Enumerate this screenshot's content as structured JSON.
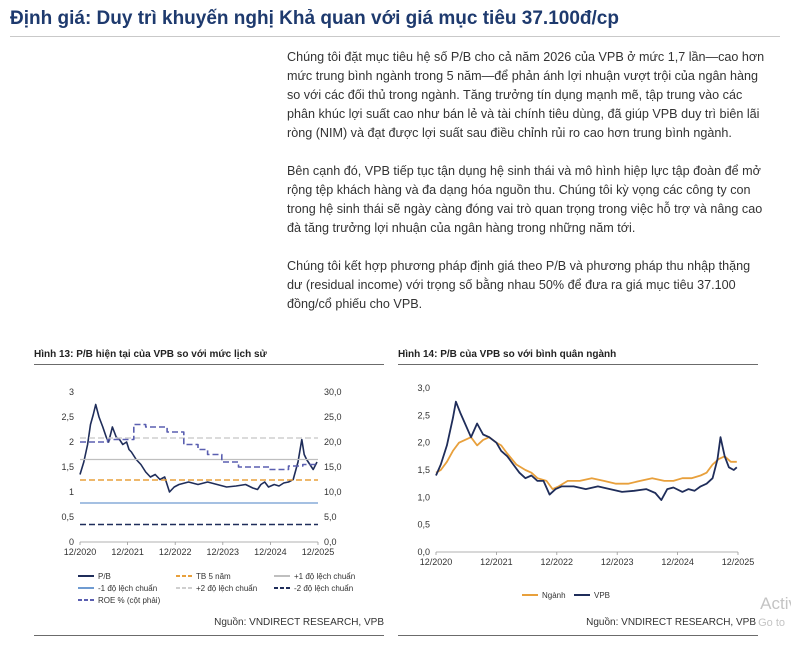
{
  "heading": "Định giá: Duy trì khuyến nghị Khả quan với giá mục tiêu 37.100đ/cp",
  "paragraphs": [
    "Chúng tôi đặt mục tiêu hệ số P/B cho cả năm 2026 của VPB ở mức 1,7 lần—cao hơn mức trung bình ngành trong 5 năm—để phản ánh lợi nhuận vượt trội của ngân hàng so với các đối thủ trong ngành. Tăng trưởng tín dụng mạnh mẽ, tập trung vào các phân khúc lợi suất cao như bán lẻ và tài chính tiêu dùng, đã giúp VPB duy trì biên lãi ròng (NIM) và đạt được lợi suất sau điều chỉnh rủi ro cao hơn trung bình ngành.",
    "Bên cạnh đó, VPB tiếp tục tận dụng hệ sinh thái và mô hình hiệp lực tập đoàn để mở rộng tệp khách hàng và đa dạng hóa nguồn thu. Chúng tôi kỳ vọng các công ty con trong hệ sinh thái sẽ ngày càng đóng vai trò quan trọng trong việc hỗ trợ và nâng cao đà tăng trưởng lợi nhuận của ngân hàng trong những năm tới.",
    "Chúng tôi kết hợp phương pháp định giá theo P/B và phương pháp thu nhập thặng dư (residual income) với trọng số bằng nhau 50% để đưa ra giá mục tiêu 37.100 đồng/cổ phiếu cho VPB."
  ],
  "figures": {
    "fig13": {
      "title": "Hình 13: P/B hiện tại của VPB so với mức lịch sử",
      "source": "Nguồn: VNDIRECT RESEARCH, VPB"
    },
    "fig14": {
      "title": "Hình 14: P/B của VPB so với bình quân ngành",
      "source": "Nguồn: VNDIRECT RESEARCH, VPB"
    }
  },
  "watermark": {
    "line1": "Activ",
    "line2": "Go to"
  },
  "chart_data": [
    {
      "type": "line",
      "ylim": [
        0,
        3
      ],
      "y2lim": [
        0,
        30
      ],
      "y_ticks": [
        "0",
        "0,5",
        "1",
        "1,5",
        "2",
        "2,5",
        "3"
      ],
      "y2_ticks": [
        "0,0",
        "5,0",
        "10,0",
        "15,0",
        "20,0",
        "25,0",
        "30,0"
      ],
      "x_ticks": [
        "12/2020",
        "12/2021",
        "12/2022",
        "12/2023",
        "12/2024",
        "12/2025"
      ],
      "x_range": [
        2020.92,
        2025.92
      ],
      "colors": {
        "pb": "#1f2d5a",
        "mean": "#e8a03c",
        "sd1": "#9ec2e6",
        "sd2": "#bfbfbf",
        "roe": "#5a5fb0"
      },
      "legend": [
        {
          "label": "P/B",
          "style": "solid",
          "color": "#1f2d5a"
        },
        {
          "label": "TB 5 năm",
          "style": "dashed",
          "color": "#e8a03c"
        },
        {
          "label": "+1 độ lệch chuẩn",
          "style": "solid",
          "color": "#bfbfbf"
        },
        {
          "label": "-1 độ lệch chuẩn",
          "style": "solid",
          "color": "#6f9bd1"
        },
        {
          "label": "+2 độ lệch chuẩn",
          "style": "dashed",
          "color": "#cfcfcf"
        },
        {
          "label": "-2 độ lệch chuẩn",
          "style": "dashed",
          "color": "#1f2d5a"
        },
        {
          "label": "ROE % (cột phải)",
          "style": "dashed",
          "color": "#5a5fb0"
        }
      ],
      "series": [
        {
          "name": "P/B",
          "x": [
            2020.92,
            2021.0,
            2021.08,
            2021.14,
            2021.2,
            2021.25,
            2021.32,
            2021.4,
            2021.47,
            2021.52,
            2021.6,
            2021.68,
            2021.75,
            2021.82,
            2021.9,
            2021.95,
            2022.0,
            2022.1,
            2022.2,
            2022.3,
            2022.4,
            2022.5,
            2022.6,
            2022.7,
            2022.8,
            2022.9,
            2023.0,
            2023.2,
            2023.4,
            2023.6,
            2023.8,
            2024.0,
            2024.2,
            2024.4,
            2024.55,
            2024.65,
            2024.72,
            2024.8,
            2024.88,
            2025.0,
            2025.1,
            2025.2,
            2025.3,
            2025.4,
            2025.5,
            2025.58,
            2025.63,
            2025.68,
            2025.75,
            2025.82,
            2025.9
          ],
          "values": [
            1.35,
            1.6,
            1.95,
            2.35,
            2.55,
            2.75,
            2.5,
            2.3,
            2.1,
            2.0,
            2.3,
            2.1,
            2.05,
            1.95,
            2.0,
            1.85,
            1.8,
            1.65,
            1.55,
            1.4,
            1.3,
            1.35,
            1.25,
            1.3,
            1.0,
            1.1,
            1.15,
            1.2,
            1.15,
            1.2,
            1.15,
            1.1,
            1.12,
            1.15,
            1.08,
            1.05,
            1.15,
            1.2,
            1.1,
            1.15,
            1.12,
            1.18,
            1.2,
            1.25,
            1.6,
            2.05,
            1.75,
            1.65,
            1.55,
            1.45,
            1.6
          ]
        },
        {
          "name": "TB 5 năm",
          "x": [
            2020.92,
            2025.92
          ],
          "values": [
            1.24,
            1.24
          ]
        },
        {
          "name": "+1 độ lệch chuẩn",
          "x": [
            2020.92,
            2025.92
          ],
          "values": [
            1.65,
            1.65
          ]
        },
        {
          "name": "-1 độ lệch chuẩn",
          "x": [
            2020.92,
            2025.92
          ],
          "values": [
            0.78,
            0.78
          ]
        },
        {
          "name": "+2 độ lệch chuẩn",
          "x": [
            2020.92,
            2025.92
          ],
          "values": [
            2.08,
            2.08
          ]
        },
        {
          "name": "-2 độ lệch chuẩn",
          "x": [
            2020.92,
            2025.92
          ],
          "values": [
            0.35,
            0.35
          ]
        },
        {
          "name": "ROE % (cột phải)",
          "axis": "right",
          "x": [
            2020.92,
            2021.5,
            2021.5,
            2022.05,
            2022.05,
            2022.3,
            2022.3,
            2022.75,
            2022.75,
            2023.1,
            2023.1,
            2023.4,
            2023.4,
            2023.6,
            2023.6,
            2023.9,
            2023.9,
            2024.25,
            2024.25,
            2024.9,
            2024.9,
            2025.3,
            2025.3,
            2025.6,
            2025.6,
            2025.92
          ],
          "values": [
            20.0,
            20.0,
            20.5,
            20.5,
            23.5,
            23.5,
            23.0,
            23.0,
            22.0,
            22.0,
            19.5,
            19.5,
            18.5,
            18.5,
            17.5,
            17.5,
            16.0,
            16.0,
            15.0,
            15.0,
            14.5,
            14.5,
            15.2,
            15.2,
            15.5,
            15.5
          ]
        }
      ]
    },
    {
      "type": "line",
      "ylim": [
        0,
        3
      ],
      "y_ticks": [
        "0,0",
        "0,5",
        "1,0",
        "1,5",
        "2,0",
        "2,5",
        "3,0"
      ],
      "x_ticks": [
        "12/2020",
        "12/2021",
        "12/2022",
        "12/2023",
        "12/2024",
        "12/2025"
      ],
      "x_range": [
        2020.92,
        2025.92
      ],
      "colors": {
        "nganh": "#e8a03c",
        "vpb": "#1f2d5a"
      },
      "legend": [
        {
          "label": "Ngành",
          "style": "solid",
          "color": "#e8a03c"
        },
        {
          "label": "VPB",
          "style": "solid",
          "color": "#1f2d5a"
        }
      ],
      "series": [
        {
          "name": "Ngành",
          "x": [
            2020.92,
            2021.0,
            2021.1,
            2021.2,
            2021.3,
            2021.4,
            2021.5,
            2021.6,
            2021.7,
            2021.8,
            2021.92,
            2022.0,
            2022.1,
            2022.25,
            2022.4,
            2022.5,
            2022.6,
            2022.75,
            2022.85,
            2022.95,
            2023.1,
            2023.3,
            2023.5,
            2023.7,
            2023.9,
            2024.1,
            2024.3,
            2024.5,
            2024.7,
            2024.85,
            2025.0,
            2025.15,
            2025.3,
            2025.4,
            2025.5,
            2025.6,
            2025.7,
            2025.8,
            2025.9
          ],
          "values": [
            1.45,
            1.5,
            1.65,
            1.85,
            2.0,
            2.05,
            2.1,
            1.95,
            2.05,
            2.1,
            2.0,
            1.95,
            1.8,
            1.6,
            1.5,
            1.45,
            1.35,
            1.3,
            1.15,
            1.2,
            1.3,
            1.3,
            1.35,
            1.3,
            1.25,
            1.25,
            1.3,
            1.35,
            1.3,
            1.3,
            1.35,
            1.35,
            1.4,
            1.45,
            1.6,
            1.7,
            1.75,
            1.65,
            1.65
          ]
        },
        {
          "name": "VPB",
          "x": [
            2020.92,
            2021.0,
            2021.1,
            2021.2,
            2021.25,
            2021.32,
            2021.4,
            2021.5,
            2021.6,
            2021.7,
            2021.8,
            2021.92,
            2022.0,
            2022.1,
            2022.2,
            2022.3,
            2022.4,
            2022.5,
            2022.6,
            2022.7,
            2022.8,
            2022.9,
            2023.0,
            2023.2,
            2023.4,
            2023.6,
            2023.8,
            2024.0,
            2024.2,
            2024.4,
            2024.55,
            2024.65,
            2024.75,
            2024.85,
            2025.0,
            2025.1,
            2025.2,
            2025.3,
            2025.4,
            2025.5,
            2025.58,
            2025.63,
            2025.7,
            2025.77,
            2025.85,
            2025.9
          ],
          "values": [
            1.4,
            1.6,
            1.95,
            2.45,
            2.75,
            2.55,
            2.35,
            2.1,
            2.35,
            2.15,
            2.1,
            2.0,
            1.85,
            1.75,
            1.6,
            1.45,
            1.35,
            1.4,
            1.3,
            1.3,
            1.05,
            1.15,
            1.2,
            1.2,
            1.15,
            1.2,
            1.15,
            1.1,
            1.12,
            1.15,
            1.08,
            0.95,
            1.15,
            1.18,
            1.1,
            1.15,
            1.12,
            1.2,
            1.25,
            1.35,
            1.7,
            2.1,
            1.75,
            1.55,
            1.5,
            1.55
          ]
        }
      ]
    }
  ]
}
